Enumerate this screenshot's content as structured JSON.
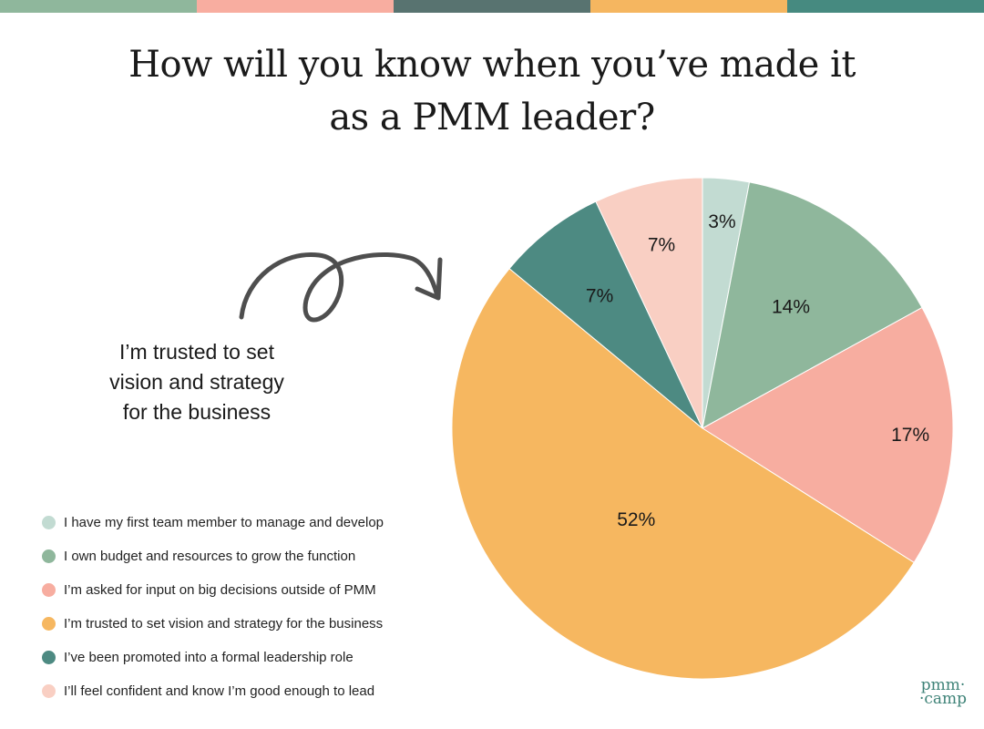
{
  "topbar": {
    "colors": [
      "#8fb79c",
      "#f8ada0",
      "#587370",
      "#f5b660",
      "#468a80"
    ]
  },
  "header": {
    "title_line1": "How will you know when you’ve made it",
    "title_line2": "as a PMM leader?"
  },
  "annotation": {
    "line1": "I’m trusted to set",
    "line2": "vision and strategy",
    "line3": "for the business"
  },
  "legend": {
    "items": [
      {
        "label": "I have my first team member to manage and develop",
        "color": "#c2dbd2"
      },
      {
        "label": "I own budget and resources to grow the function",
        "color": "#8fb79c"
      },
      {
        "label": "I’m asked for input on big decisions outside of PMM",
        "color": "#f7ada0"
      },
      {
        "label": "I’m trusted to set vision and strategy for the business",
        "color": "#f6b760"
      },
      {
        "label": "I’ve been promoted into a formal leadership role",
        "color": "#4d8a82"
      },
      {
        "label": "I’ll feel confident and know I’m good enough to lead",
        "color": "#f9cfc3"
      }
    ]
  },
  "logo": {
    "line1": "pmm·",
    "line2": "·camp"
  },
  "chart_data": {
    "type": "pie",
    "title": "How will you know when you’ve made it as a PMM leader?",
    "categories": [
      "I have my first team member to manage and develop",
      "I own budget and resources to grow the function",
      "I’m asked for input on big decisions outside of PMM",
      "I’m trusted to set vision and strategy for the business",
      "I’ve been promoted into a formal leadership role",
      "I’ll feel confident and know I’m good enough to lead"
    ],
    "values": [
      3,
      14,
      17,
      52,
      7,
      7
    ],
    "labels": [
      "3%",
      "14%",
      "17%",
      "52%",
      "7%",
      "7%"
    ],
    "colors": [
      "#c2dbd2",
      "#8fb79c",
      "#f7ada0",
      "#f6b760",
      "#4d8a82",
      "#f9cfc3"
    ],
    "start_angle": "12 o'clock",
    "direction": "clockwise",
    "legend_position": "left-bottom",
    "annotation": "I’m trusted to set vision and strategy for the business"
  }
}
